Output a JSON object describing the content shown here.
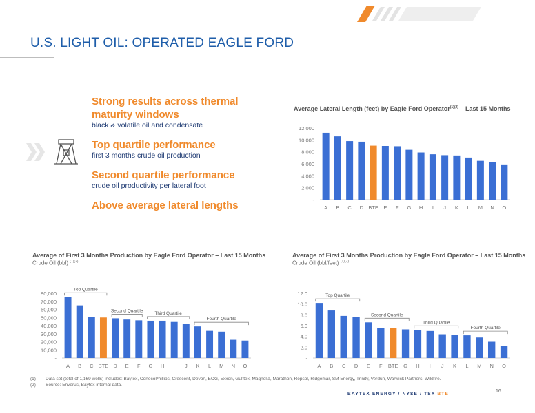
{
  "page": {
    "title": "U.S. LIGHT OIL: OPERATED EAGLE FORD",
    "page_number": "16",
    "footer": {
      "brand": "BAYTEX ENERGY",
      "sep1": "/",
      "exch1": "NYSE",
      "sep2": "/",
      "exch2": "TSX",
      "ticker": "BTE"
    }
  },
  "highlights": [
    {
      "heading": "Strong results across thermal maturity windows",
      "sub": "black & volatile oil and condensate"
    },
    {
      "heading": "Top quartile performance",
      "sub": "first 3 months crude oil production"
    },
    {
      "heading": "Second quartile performance",
      "sub": "crude oil productivity per lateral foot"
    },
    {
      "heading": "Above average lateral lengths",
      "sub": ""
    }
  ],
  "icons": {
    "chevron": "double-chevron-icon",
    "rig": "oil-pump-jack-icon"
  },
  "colors": {
    "title": "#1f5eaa",
    "bar": "#3b6fd4",
    "highlight_bar": "#f08a2c",
    "accent": "#f08a2c",
    "navy": "#1f3b73"
  },
  "footnotes": [
    {
      "num": "(1)",
      "text": "Data set (total of 1,169 wells) includes: Baytex, ConocoPhillips, Crescent, Devon, EOG, Exxon, Gulftex, Magnolia, Marathon, Repsol, Ridgemar, SM Energy, Trinity, Verdun, Warwick Partners, Wildfire."
    },
    {
      "num": "(2)",
      "text": "Source: Enverus, Baytex internal data."
    }
  ],
  "chart_data": [
    {
      "id": "lateral",
      "type": "bar",
      "title": "Average Lateral Length (feet) by Eagle Ford Operator",
      "title_sup": "(1)(2)",
      "title_suffix": " – Last 15 Months",
      "subtitle": "",
      "categories": [
        "A",
        "B",
        "C",
        "D",
        "BTE",
        "E",
        "F",
        "G",
        "H",
        "I",
        "J",
        "K",
        "L",
        "M",
        "N",
        "O"
      ],
      "values": [
        11200,
        10600,
        9800,
        9700,
        9050,
        9000,
        8950,
        8350,
        7900,
        7600,
        7450,
        7400,
        7050,
        6500,
        6300,
        5900
      ],
      "highlight": "BTE",
      "ylim": [
        0,
        12000
      ],
      "yticks": [
        0,
        2000,
        4000,
        6000,
        8000,
        10000,
        12000
      ],
      "ytick_labels": [
        "-",
        "2,000",
        "4,000",
        "6,000",
        "8,000",
        "10,000",
        "12,000"
      ],
      "grid": false,
      "quartiles": []
    },
    {
      "id": "production",
      "type": "bar",
      "title": "Average of First 3 Months Production by Eagle Ford Operator – Last 15 Months",
      "title_sup": "",
      "title_suffix": "",
      "subtitle": "Crude Oil (bbl)",
      "subtitle_sup": "(1)(2)",
      "categories": [
        "A",
        "B",
        "C",
        "BTE",
        "D",
        "E",
        "F",
        "G",
        "H",
        "I",
        "J",
        "K",
        "L",
        "M",
        "N",
        "O"
      ],
      "values": [
        75500,
        65000,
        50500,
        50000,
        49000,
        47500,
        46500,
        46000,
        46000,
        44500,
        42500,
        39000,
        33500,
        32500,
        22500,
        21500
      ],
      "highlight": "BTE",
      "ylim": [
        0,
        80000
      ],
      "yticks": [
        0,
        10000,
        20000,
        30000,
        40000,
        50000,
        60000,
        70000,
        80000
      ],
      "ytick_labels": [
        "-",
        "10,000",
        "20,000",
        "30,000",
        "40,000",
        "50,000",
        "60,000",
        "70,000",
        "80,000"
      ],
      "grid": false,
      "quartiles": [
        {
          "label": "Top Quartile",
          "from": 0,
          "to": 3
        },
        {
          "label": "Second Quartile",
          "from": 4,
          "to": 6
        },
        {
          "label": "Third Quartile",
          "from": 7,
          "to": 10
        },
        {
          "label": "Fourth Quartile",
          "from": 11,
          "to": 15
        }
      ]
    },
    {
      "id": "productivity",
      "type": "bar",
      "title": "Average of First 3 Months Production by Eagle Ford Operator – Last 15 Months",
      "title_sup": "",
      "title_suffix": "",
      "subtitle": "Crude Oil (bbl/feet)",
      "subtitle_sup": "(1)(2)",
      "categories": [
        "A",
        "B",
        "C",
        "D",
        "E",
        "F",
        "BTE",
        "G",
        "H",
        "I",
        "J",
        "K",
        "L",
        "M",
        "N",
        "O"
      ],
      "values": [
        10.2,
        8.8,
        7.8,
        7.6,
        6.6,
        5.6,
        5.5,
        5.3,
        5.2,
        5.0,
        4.4,
        4.3,
        4.2,
        3.8,
        3.0,
        2.2
      ],
      "highlight": "BTE",
      "ylim": [
        0,
        12
      ],
      "yticks": [
        0,
        2,
        4,
        6,
        8,
        10,
        12
      ],
      "ytick_labels": [
        "-",
        "2.0",
        "4.0",
        "6.0",
        "8.0",
        "10.0",
        "12.0"
      ],
      "grid": false,
      "quartiles": [
        {
          "label": "Top Quartile",
          "from": 0,
          "to": 3
        },
        {
          "label": "Second Quartile",
          "from": 4,
          "to": 7
        },
        {
          "label": "Third Quartile",
          "from": 8,
          "to": 11
        },
        {
          "label": "Fourth Quartile",
          "from": 12,
          "to": 15
        }
      ]
    }
  ]
}
